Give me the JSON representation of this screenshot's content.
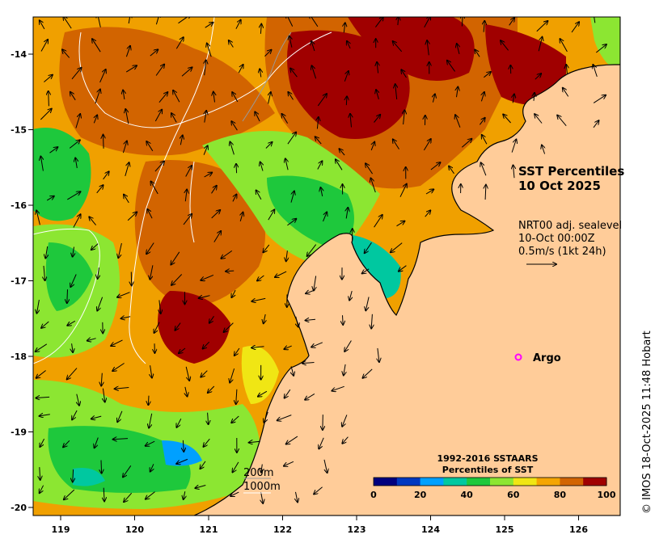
{
  "title": {
    "line1": "SST Percentiles",
    "line2": "10 Oct 2025"
  },
  "currents_note": {
    "line1": "NRT00 adj. sealevel",
    "line2": "10-Oct 00:00Z",
    "line3": "0.5m/s (1kt 24h)"
  },
  "argo_label": "Argo",
  "depth_contours": {
    "c200": "200m",
    "c1000": "1000m"
  },
  "colorbar": {
    "title_line1": "1992-2016 SSTAARS",
    "title_line2": "Percentiles of SST",
    "ticks": [
      "0",
      "20",
      "40",
      "60",
      "80",
      "100"
    ],
    "colors": [
      "#00007f",
      "#0038c0",
      "#00a0ff",
      "#00c8a0",
      "#1ec83c",
      "#8ce632",
      "#f0e614",
      "#f5a500",
      "#d26400",
      "#a00000"
    ]
  },
  "credit": "© IMOS 18-Oct-2025 11:48 Hobart",
  "axes": {
    "lon_ticks": [
      "119",
      "120",
      "121",
      "122",
      "123",
      "124",
      "125",
      "126"
    ],
    "lat_ticks": [
      "-14",
      "-15",
      "-16",
      "-17",
      "-18",
      "-19",
      "-20"
    ]
  },
  "colors": {
    "land": "#ffcc99",
    "coast": "#000000",
    "contour": "#ffffff",
    "argo": "#ff00ff"
  }
}
